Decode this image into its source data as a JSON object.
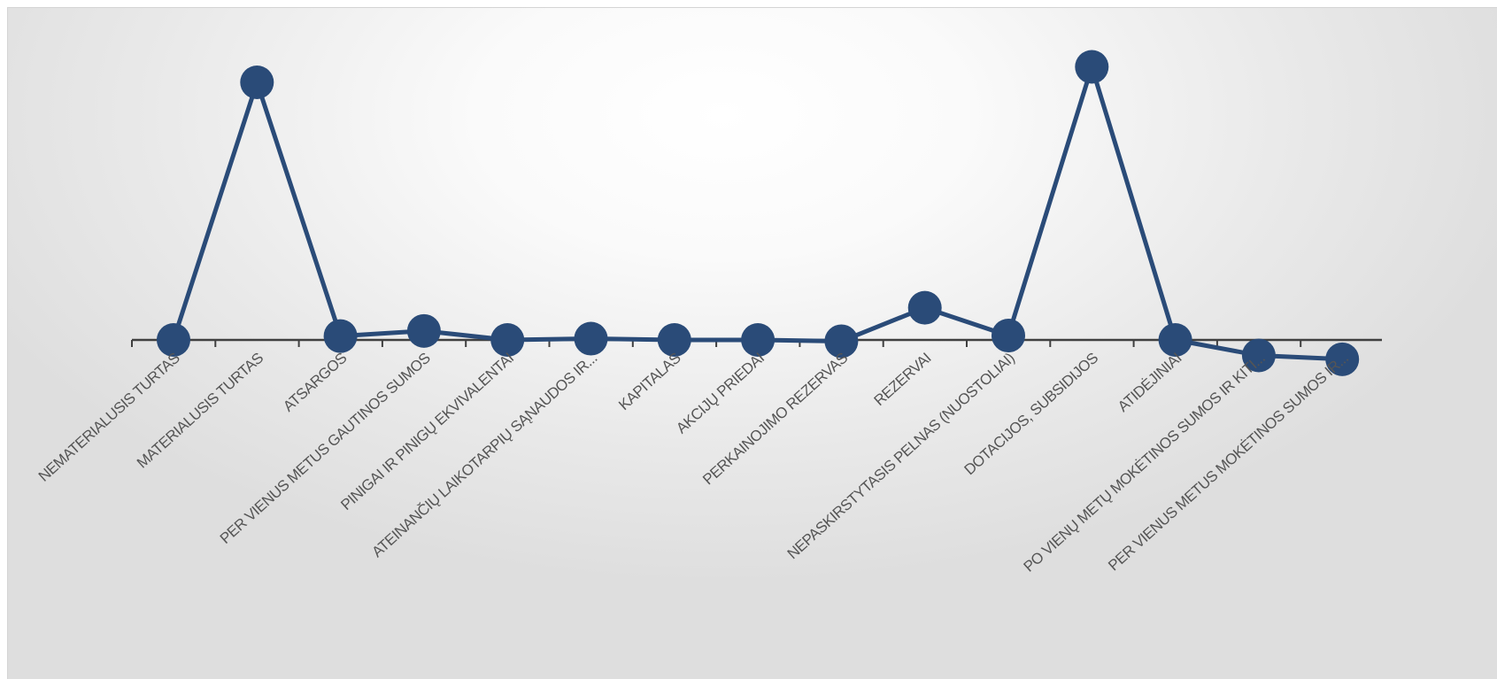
{
  "chart_data": {
    "type": "line",
    "title": "",
    "xlabel": "",
    "ylabel": "",
    "categories": [
      "NEMATERIALUSIS TURTAS",
      "MATERIALUSIS TURTAS",
      "ATSARGOS",
      "PER VIENUS METUS GAUTINOS SUMOS",
      "PINIGAI IR PINIGŲ EKVIVALENTAI",
      "ATEINANČIŲ LAIKOTARPIŲ SĄNAUDOS IR...",
      "KAPITALAS",
      "AKCIJŲ PRIEDAI",
      "PERKAINOJIMO REZERVAS",
      "REZERVAI",
      "NEPASKIRSTYTASIS PELNAS (NUOSTOLIAI)",
      "DOTACIJOS, SUBSIDIJOS",
      "ATIDĖJINIAI",
      "PO VIENŲ METŲ MOKĖTINOS SUMOS IR KITI...",
      "PER VIENUS METUS MOKĖTINOS SUMOS IR..."
    ],
    "values": [
      0,
      100,
      1.5,
      3.5,
      0,
      0.5,
      0,
      0,
      -0.5,
      12.5,
      1.7,
      106,
      0,
      -6,
      -7.5
    ],
    "ylim": [
      -10,
      110
    ],
    "grid": false,
    "legend": "none",
    "colors": {
      "line": "#2a4b78",
      "marker": "#2a4b78",
      "axis": "#404040"
    }
  }
}
